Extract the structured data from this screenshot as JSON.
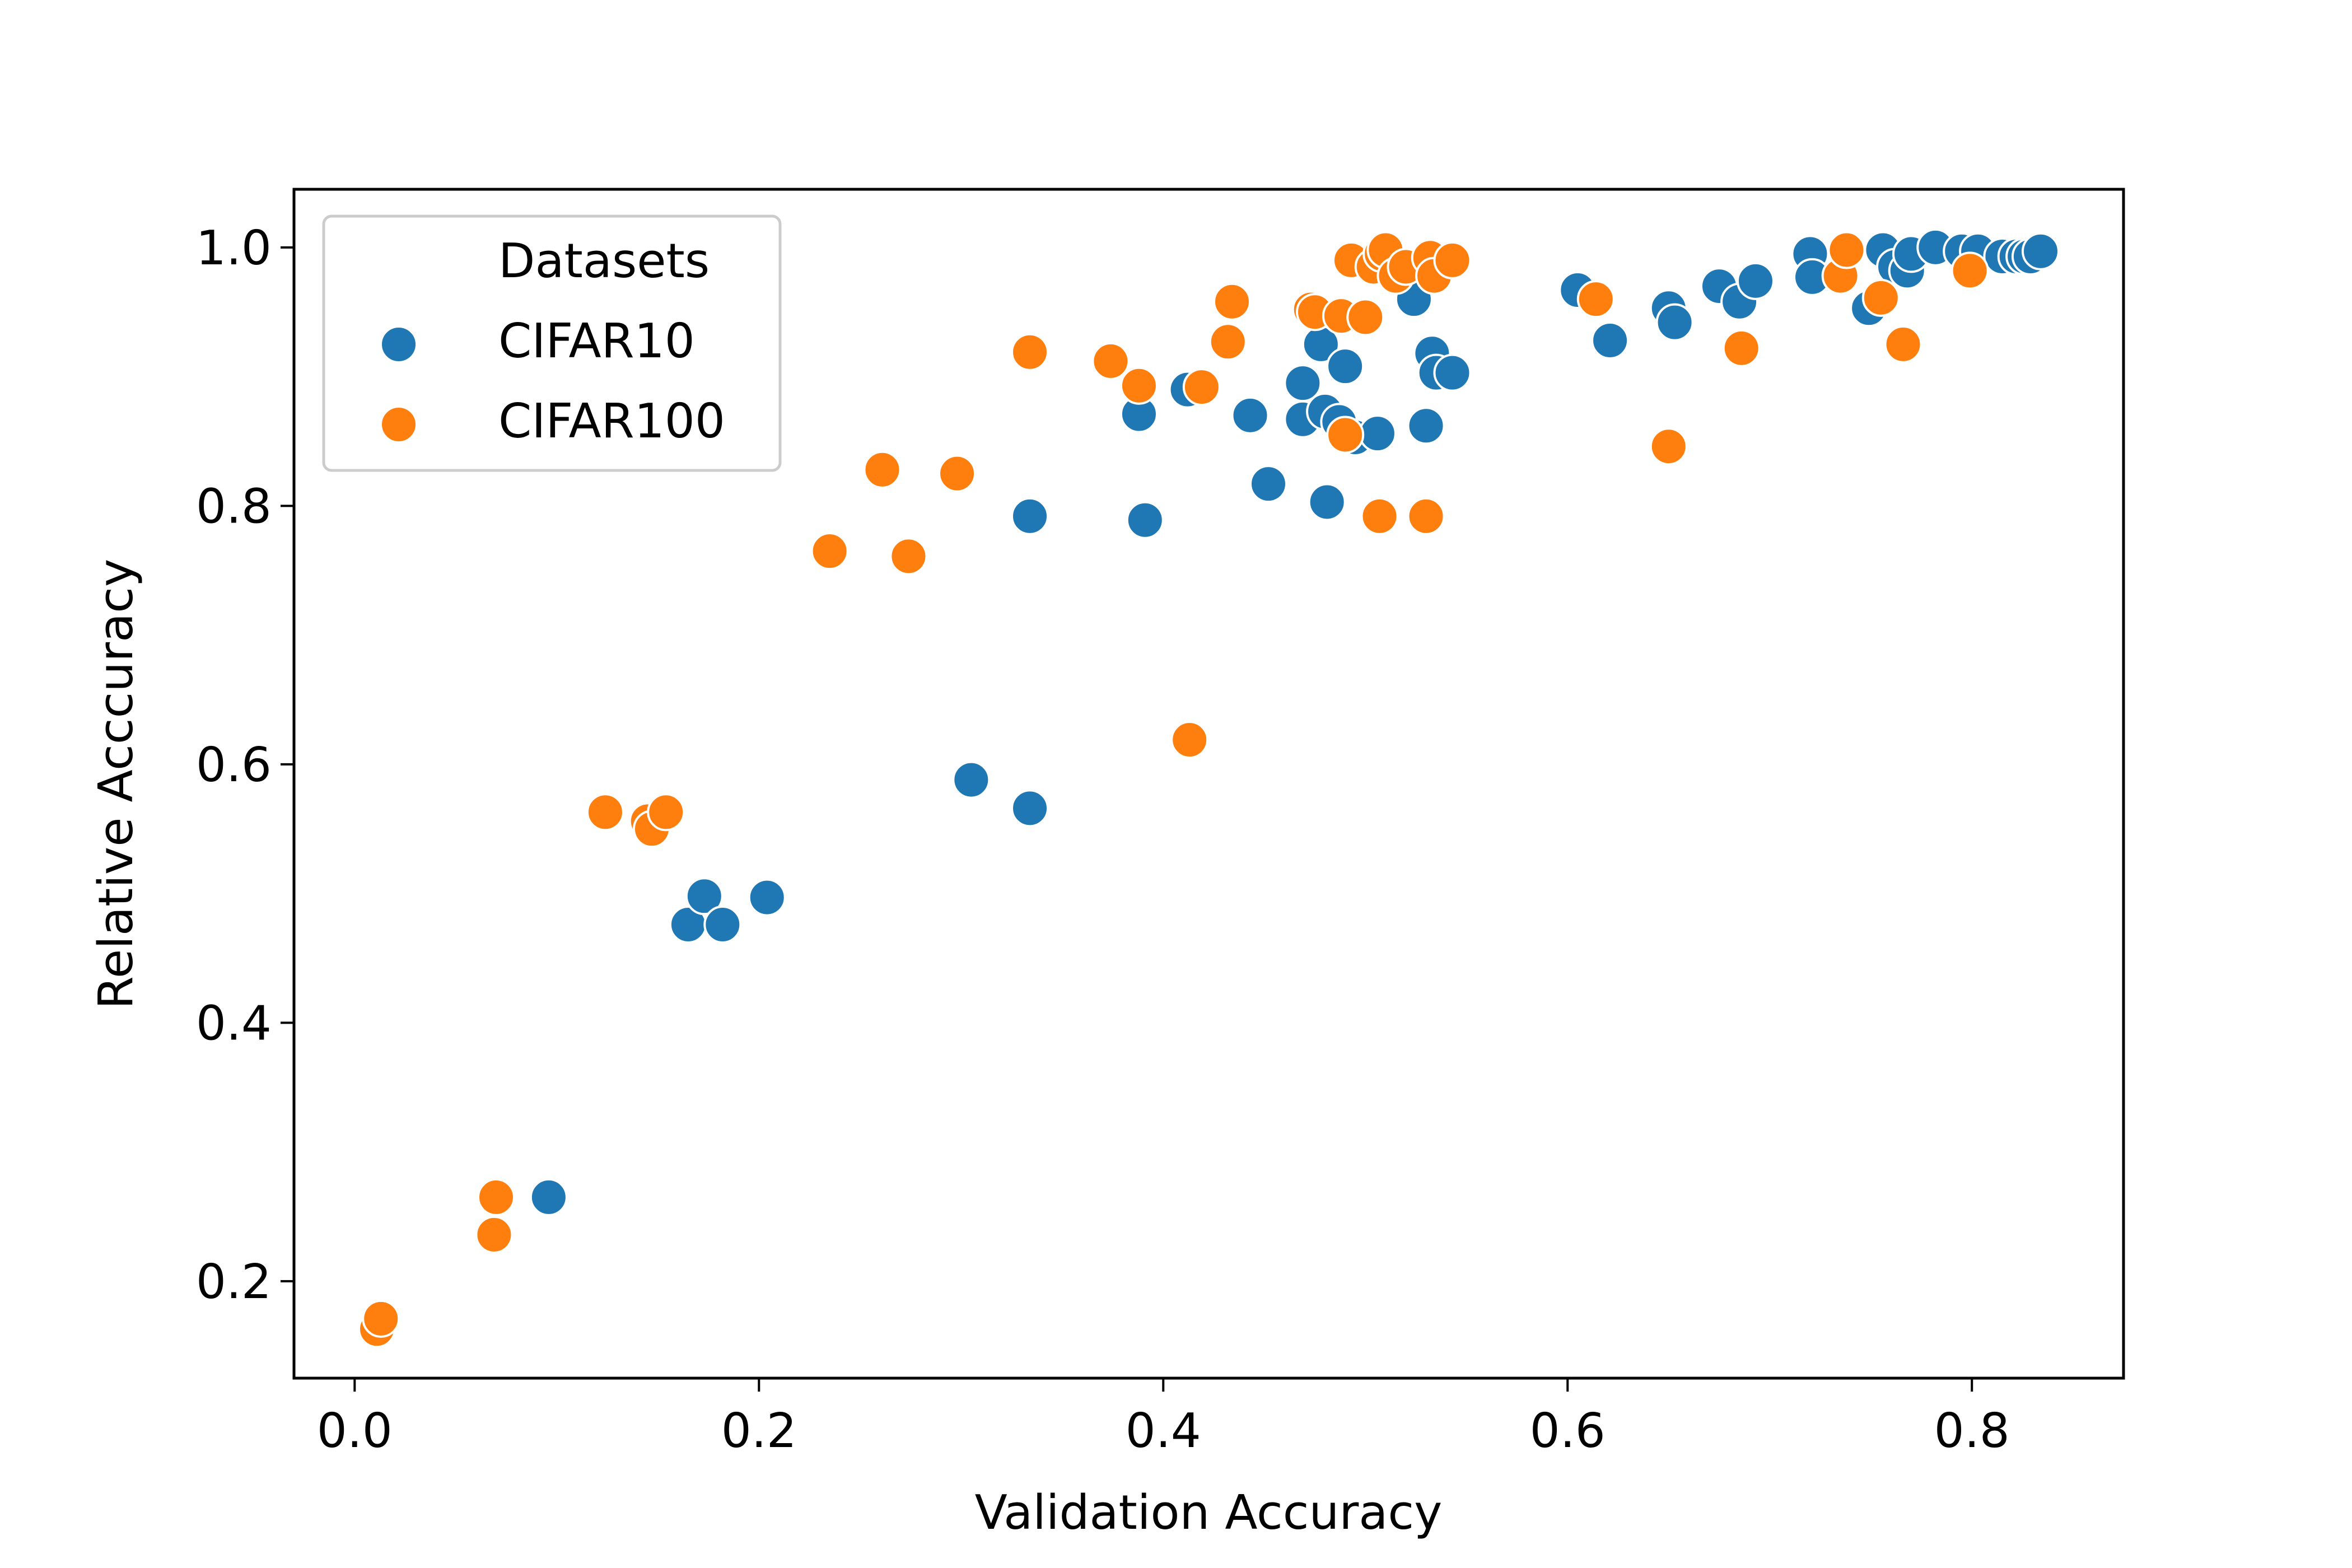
{
  "chart_data": {
    "type": "scatter",
    "title": "",
    "xlabel": "Validation Accuracy",
    "ylabel": "Relative Acccuracy",
    "xlim": [
      -0.03,
      0.875
    ],
    "ylim": [
      0.125,
      1.045
    ],
    "x_ticks": [
      0.0,
      0.2,
      0.4,
      0.6,
      0.8
    ],
    "y_ticks": [
      0.2,
      0.4,
      0.6,
      0.8,
      1.0
    ],
    "x_tick_labels": [
      "0.0",
      "0.2",
      "0.4",
      "0.6",
      "0.8"
    ],
    "y_tick_labels": [
      "0.2",
      "0.4",
      "0.6",
      "0.8",
      "1.0"
    ],
    "grid": false,
    "legend": {
      "title": "Datasets",
      "position": "top-left"
    },
    "series": [
      {
        "name": "CIFAR10",
        "color": "#1f77b4",
        "points": [
          [
            0.096,
            0.265
          ],
          [
            0.165,
            0.476
          ],
          [
            0.173,
            0.498
          ],
          [
            0.182,
            0.476
          ],
          [
            0.204,
            0.497
          ],
          [
            0.305,
            0.588
          ],
          [
            0.334,
            0.566
          ],
          [
            0.334,
            0.792
          ],
          [
            0.391,
            0.789
          ],
          [
            0.388,
            0.871
          ],
          [
            0.412,
            0.89
          ],
          [
            0.443,
            0.87
          ],
          [
            0.452,
            0.817
          ],
          [
            0.469,
            0.895
          ],
          [
            0.469,
            0.867
          ],
          [
            0.478,
            0.925
          ],
          [
            0.48,
            0.873
          ],
          [
            0.481,
            0.803
          ],
          [
            0.487,
            0.865
          ],
          [
            0.49,
            0.908
          ],
          [
            0.495,
            0.853
          ],
          [
            0.506,
            0.856
          ],
          [
            0.524,
            0.96
          ],
          [
            0.53,
            0.862
          ],
          [
            0.533,
            0.918
          ],
          [
            0.535,
            0.903
          ],
          [
            0.543,
            0.903
          ],
          [
            0.605,
            0.967
          ],
          [
            0.621,
            0.928
          ],
          [
            0.65,
            0.953
          ],
          [
            0.653,
            0.942
          ],
          [
            0.675,
            0.97
          ],
          [
            0.685,
            0.958
          ],
          [
            0.693,
            0.974
          ],
          [
            0.72,
            0.995
          ],
          [
            0.721,
            0.977
          ],
          [
            0.749,
            0.953
          ],
          [
            0.756,
            0.998
          ],
          [
            0.762,
            0.985
          ],
          [
            0.768,
            0.982
          ],
          [
            0.77,
            0.995
          ],
          [
            0.782,
            1.0
          ],
          [
            0.795,
            0.997
          ],
          [
            0.803,
            0.997
          ],
          [
            0.815,
            0.993
          ],
          [
            0.822,
            0.993
          ],
          [
            0.826,
            0.993
          ],
          [
            0.829,
            0.993
          ],
          [
            0.834,
            0.997
          ]
        ]
      },
      {
        "name": "CIFAR100",
        "color": "#ff7f0e",
        "points": [
          [
            0.011,
            0.163
          ],
          [
            0.013,
            0.171
          ],
          [
            0.069,
            0.236
          ],
          [
            0.07,
            0.265
          ],
          [
            0.124,
            0.563
          ],
          [
            0.145,
            0.556
          ],
          [
            0.147,
            0.55
          ],
          [
            0.154,
            0.563
          ],
          [
            0.235,
            0.765
          ],
          [
            0.261,
            0.828
          ],
          [
            0.274,
            0.761
          ],
          [
            0.298,
            0.825
          ],
          [
            0.334,
            0.919
          ],
          [
            0.374,
            0.912
          ],
          [
            0.388,
            0.893
          ],
          [
            0.413,
            0.619
          ],
          [
            0.419,
            0.892
          ],
          [
            0.432,
            0.927
          ],
          [
            0.434,
            0.958
          ],
          [
            0.473,
            0.952
          ],
          [
            0.475,
            0.95
          ],
          [
            0.488,
            0.947
          ],
          [
            0.49,
            0.855
          ],
          [
            0.493,
            0.99
          ],
          [
            0.5,
            0.946
          ],
          [
            0.504,
            0.985
          ],
          [
            0.507,
            0.792
          ],
          [
            0.508,
            0.995
          ],
          [
            0.51,
            0.998
          ],
          [
            0.515,
            0.978
          ],
          [
            0.52,
            0.985
          ],
          [
            0.53,
            0.792
          ],
          [
            0.532,
            0.992
          ],
          [
            0.534,
            0.978
          ],
          [
            0.543,
            0.99
          ],
          [
            0.614,
            0.96
          ],
          [
            0.65,
            0.846
          ],
          [
            0.686,
            0.922
          ],
          [
            0.735,
            0.978
          ],
          [
            0.738,
            0.998
          ],
          [
            0.755,
            0.961
          ],
          [
            0.766,
            0.925
          ],
          [
            0.799,
            0.982
          ]
        ]
      }
    ]
  }
}
